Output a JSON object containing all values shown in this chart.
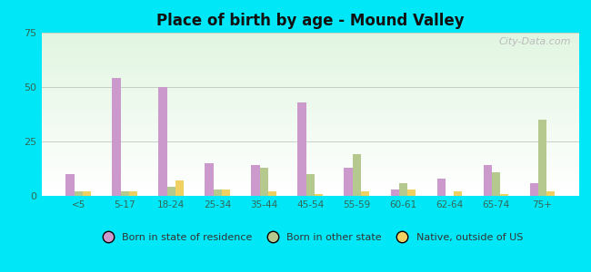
{
  "title": "Place of birth by age - Mound Valley",
  "categories": [
    "<5",
    "5-17",
    "18-24",
    "25-34",
    "35-44",
    "45-54",
    "55-59",
    "60-61",
    "62-64",
    "65-74",
    "75+"
  ],
  "born_in_state": [
    10,
    54,
    50,
    15,
    14,
    43,
    13,
    3,
    8,
    14,
    6
  ],
  "born_other_state": [
    2,
    2,
    4,
    3,
    13,
    10,
    19,
    6,
    0,
    11,
    35
  ],
  "native_outside_us": [
    2,
    2,
    7,
    3,
    2,
    1,
    2,
    3,
    2,
    1,
    2
  ],
  "color_state": "#cc99cc",
  "color_other_state": "#b5c98e",
  "color_native": "#f0d060",
  "ylim": [
    0,
    75
  ],
  "yticks": [
    0,
    25,
    50,
    75
  ],
  "bar_width": 0.18,
  "watermark": "City-Data.com",
  "legend_labels": [
    "Born in state of residence",
    "Born in other state",
    "Native, outside of US"
  ],
  "fig_bg": "#00e8f8",
  "title_fontsize": 12,
  "tick_color": "#336655"
}
